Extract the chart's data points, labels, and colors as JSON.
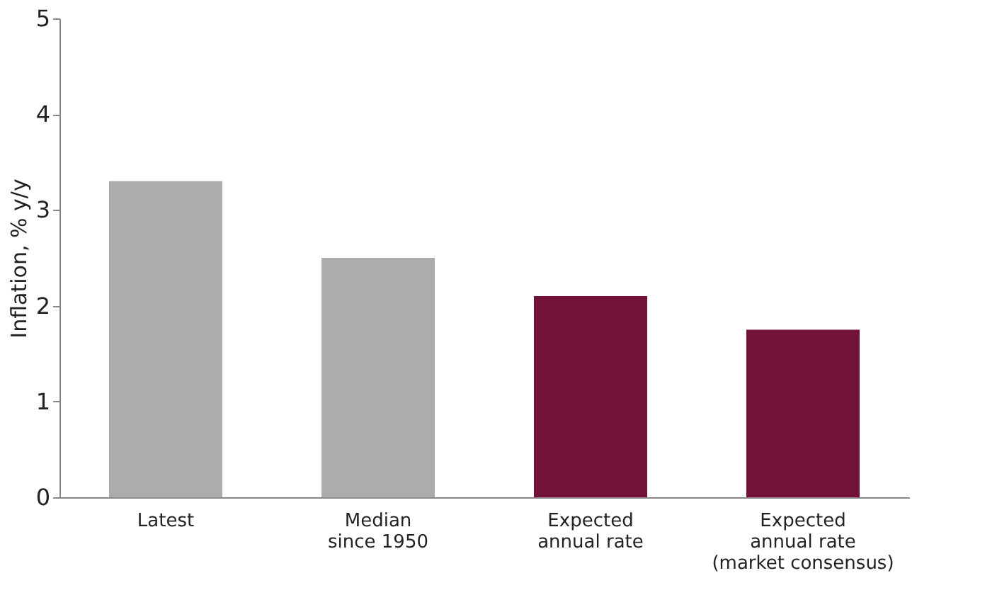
{
  "chart_data": {
    "type": "bar",
    "ylabel": "Inflation, % y/y",
    "categories": [
      "Latest",
      "Median\nsince 1950",
      "Expected\nannual rate",
      "Expected\nannual rate\n(market consensus)"
    ],
    "values": [
      3.3,
      2.5,
      2.1,
      1.75
    ],
    "colors": [
      "#acacaa",
      "#acacaa",
      "#721236",
      "#721236"
    ],
    "ylim": [
      0,
      5
    ],
    "yticks": [
      0,
      1,
      2,
      3,
      4,
      5
    ],
    "grid": false
  }
}
